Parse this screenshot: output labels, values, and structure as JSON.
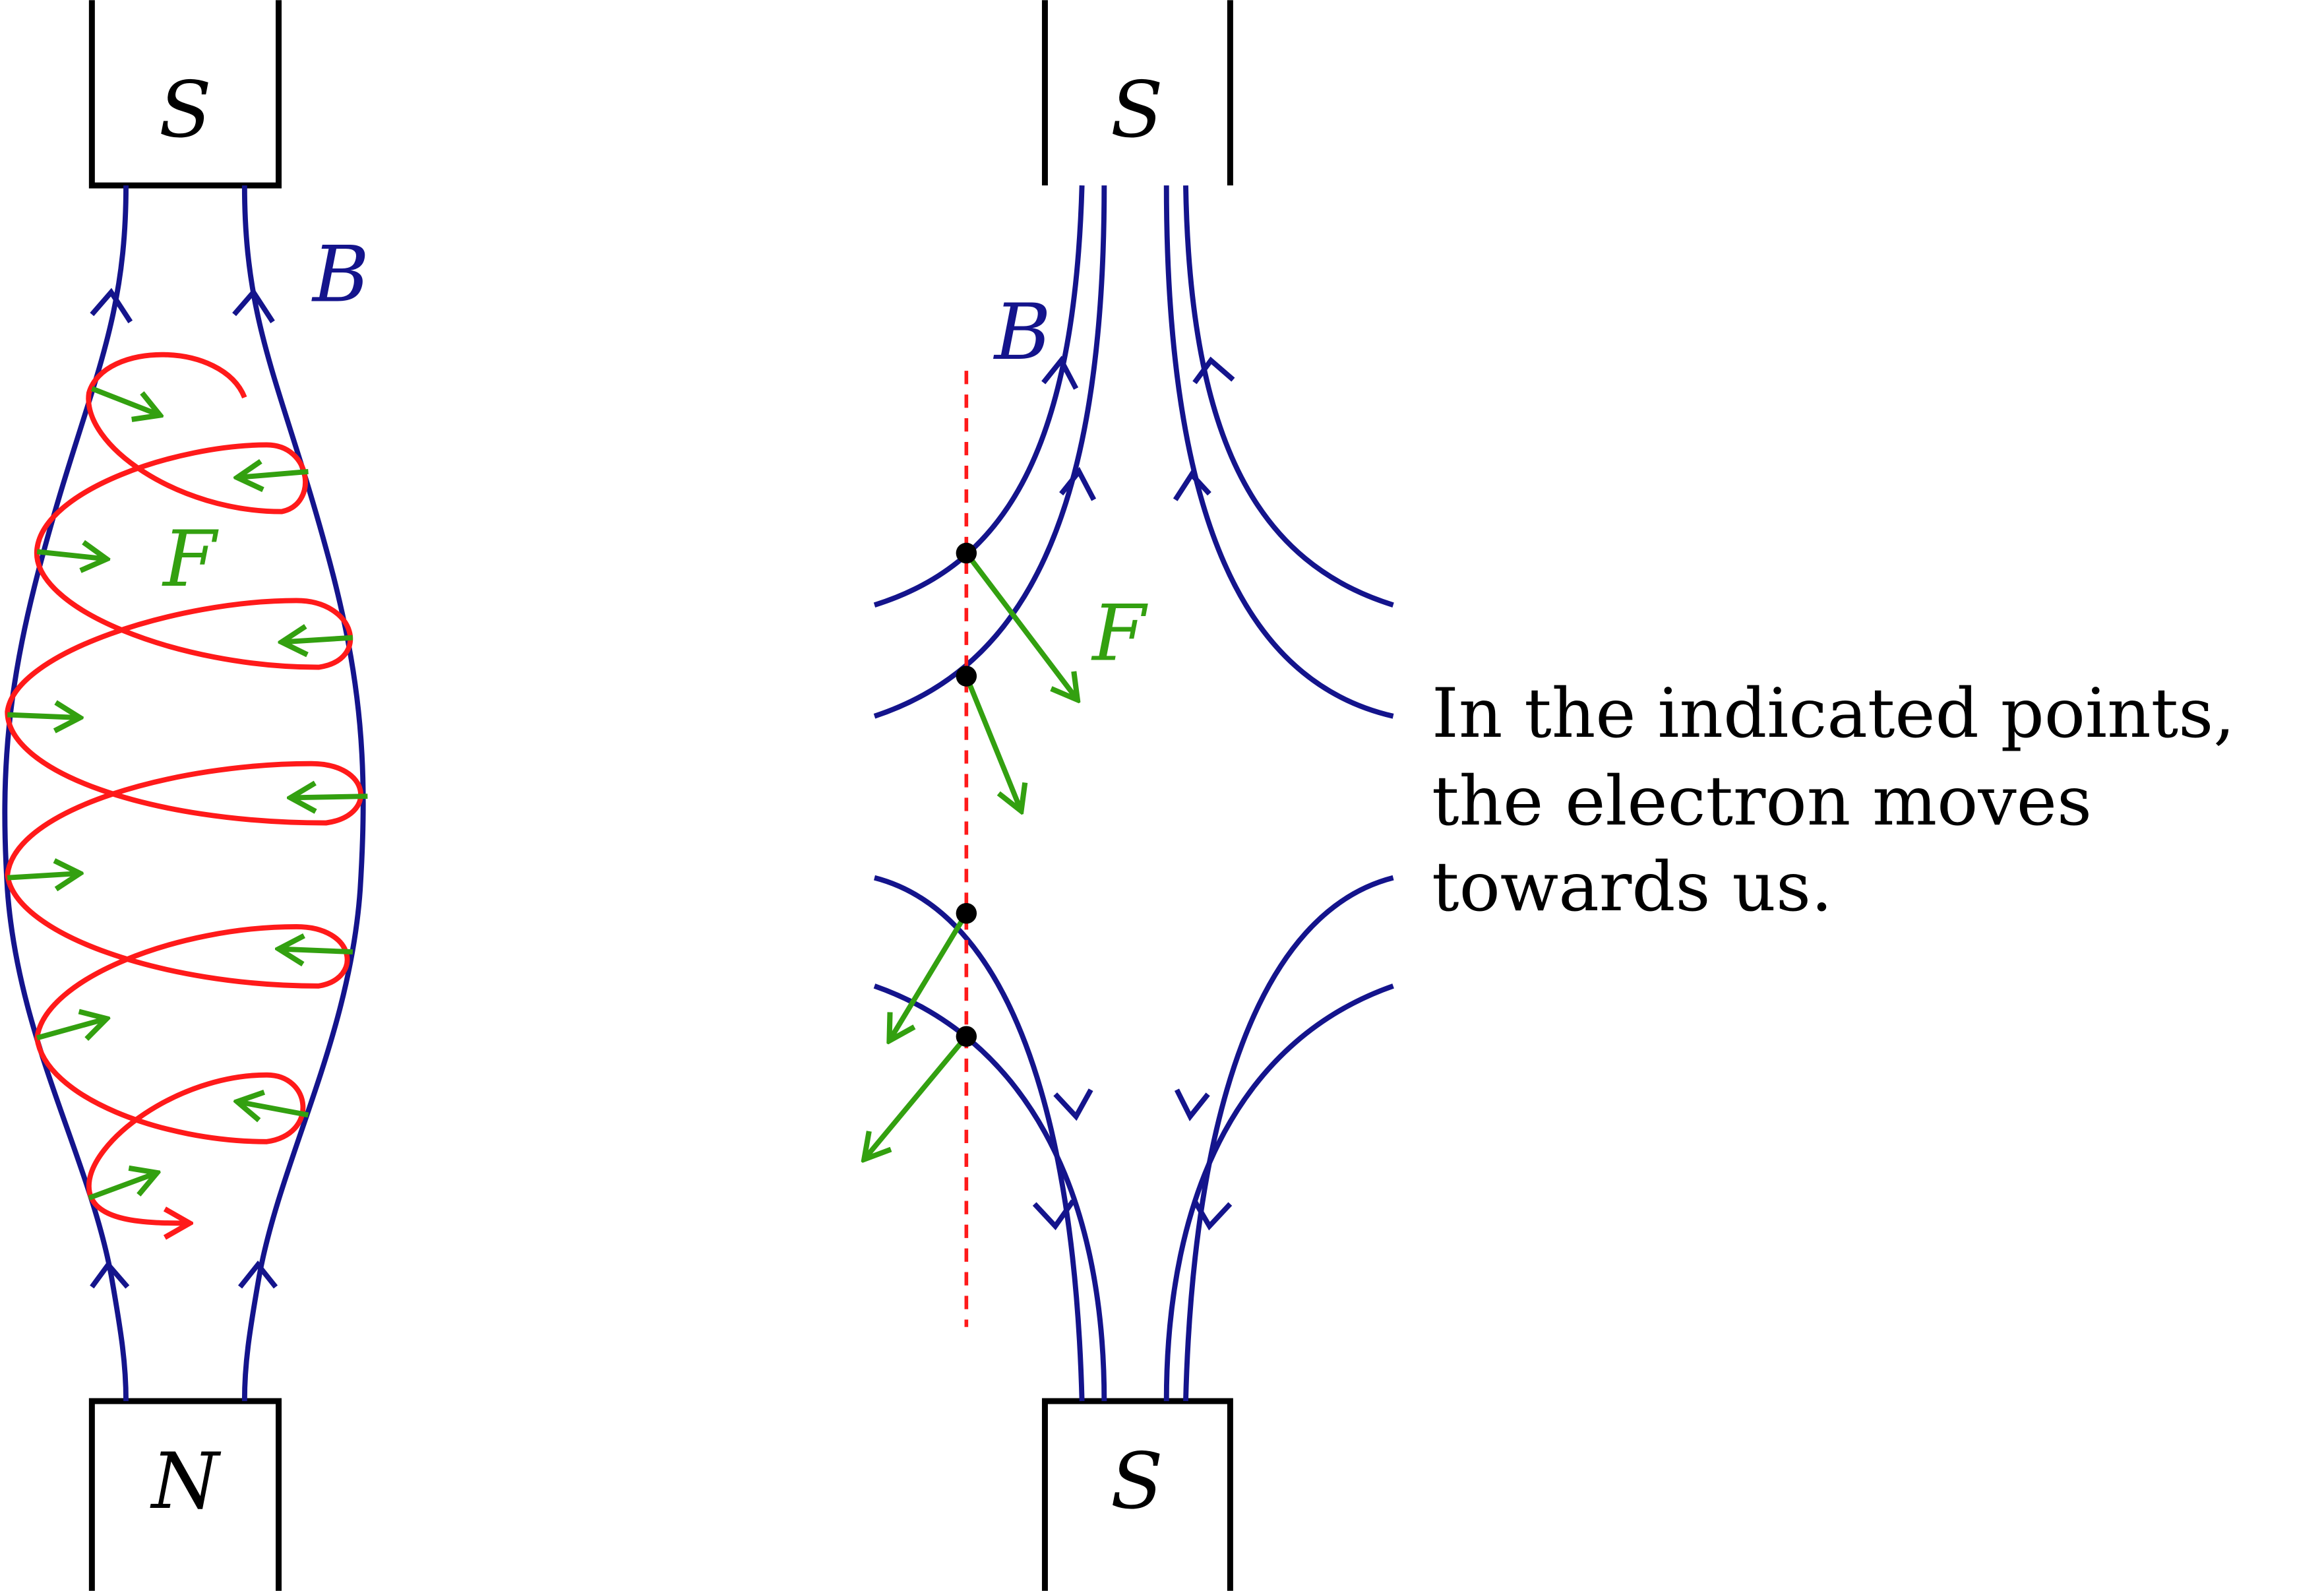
{
  "left_figure": {
    "top_magnet_label": "S",
    "bottom_magnet_label": "N",
    "field_label": "B",
    "force_label": "F"
  },
  "right_figure": {
    "top_magnet_label": "S",
    "bottom_magnet_label": "S",
    "field_label": "B",
    "force_label": "F",
    "note_lines": [
      "In the indicated points,",
      "the electron moves",
      "towards us."
    ]
  },
  "colors": {
    "field": "#14148c",
    "trajectory": "#ff1a1a",
    "force": "#33a010",
    "magnet": "#000000"
  }
}
